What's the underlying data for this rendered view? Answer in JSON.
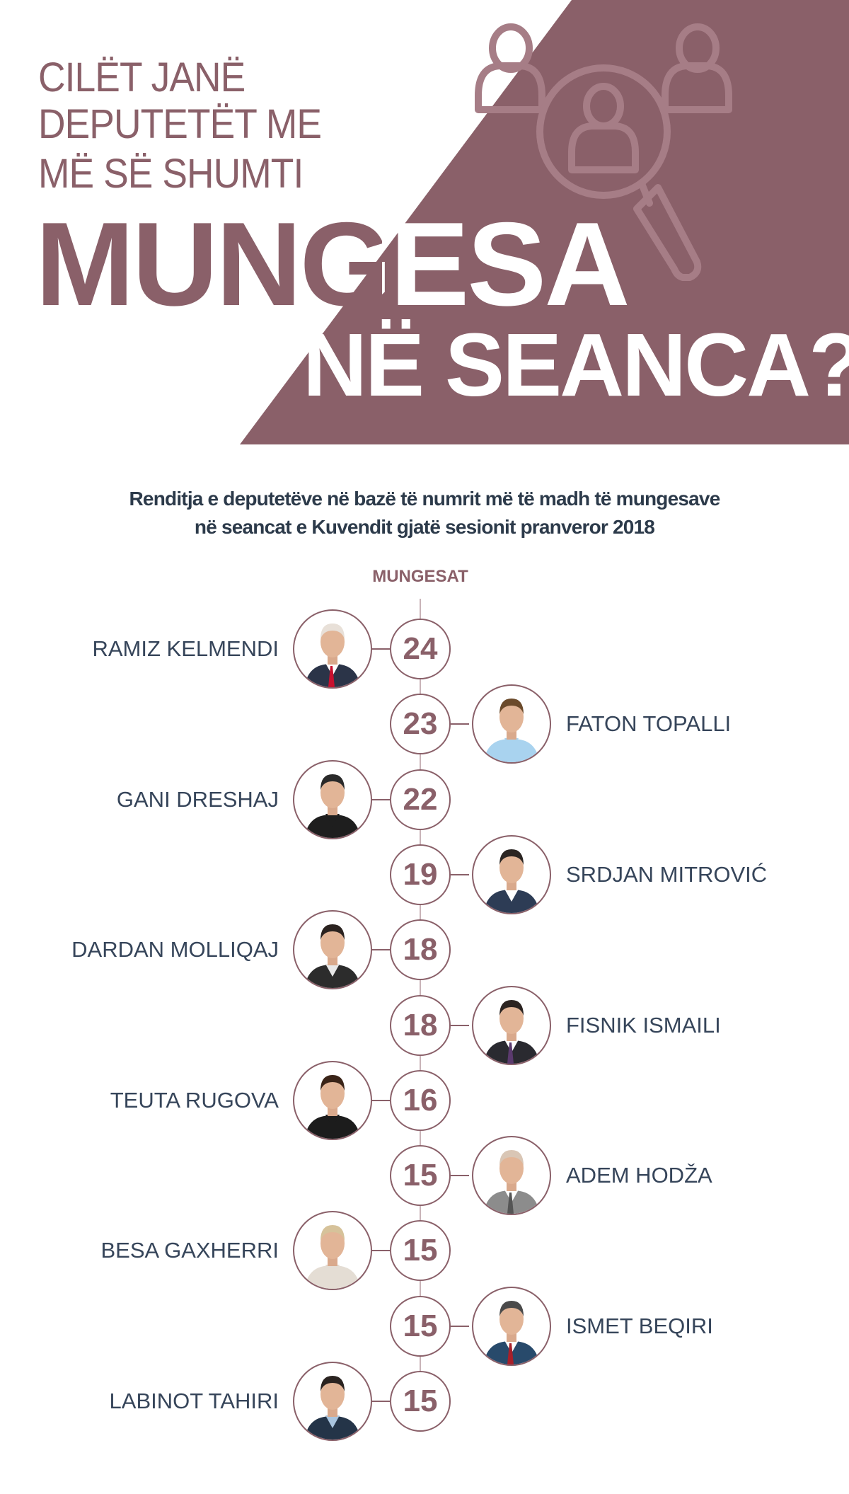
{
  "header": {
    "title_lines": [
      "CILËT JANË",
      "DEPUTETËT ME",
      "MË SË SHUMTI"
    ],
    "headline_1": "MUNGESA",
    "headline_2": "NË SEANCA?",
    "icon": "people-magnifier-icon"
  },
  "subtitle_lines": [
    "Renditja e deputetëve në bazë të numrit më të madh të mungesave",
    "në seancat e Kuvendit gjatë sesionit pranveror 2018"
  ],
  "column_header": "MUNGESAT",
  "colors": {
    "accent": "#8a6069",
    "icon": "#a67d86",
    "text": "#36455a"
  },
  "chart_data": {
    "type": "table",
    "title": "",
    "rows": [
      {
        "name": "RAMIZ KELMENDI",
        "absences": 24,
        "side": "left",
        "tie": "#c8102e",
        "suit": "#2b3448",
        "shirt": "#ffffff",
        "hair": "#e8e0d8"
      },
      {
        "name": "FATON TOPALLI",
        "absences": 23,
        "side": "right",
        "tie": "",
        "suit": "#a9d3ef",
        "shirt": "#a9d3ef",
        "hair": "#6b4a2b"
      },
      {
        "name": "GANI DRESHAJ",
        "absences": 22,
        "side": "left",
        "tie": "",
        "suit": "#1e1e1e",
        "shirt": "#1e1e1e",
        "hair": "#2a2a2a"
      },
      {
        "name": "SRDJAN MITROVIĆ",
        "absences": 19,
        "side": "right",
        "tie": "",
        "suit": "#2d3c55",
        "shirt": "#ffffff",
        "hair": "#2b2522"
      },
      {
        "name": "DARDAN MOLLIQAJ",
        "absences": 18,
        "side": "left",
        "tie": "",
        "suit": "#2c2c2c",
        "shirt": "#e8e8e8",
        "hair": "#2b2320"
      },
      {
        "name": "FISNIK ISMAILI",
        "absences": 18,
        "side": "right",
        "tie": "#5b3a6e",
        "suit": "#2a2a30",
        "shirt": "#ffffff",
        "hair": "#2b2320"
      },
      {
        "name": "TEUTA RUGOVA",
        "absences": 16,
        "side": "left",
        "tie": "",
        "suit": "#1c1c1c",
        "shirt": "#1c1c1c",
        "hair": "#3a2418"
      },
      {
        "name": "ADEM HODŽA",
        "absences": 15,
        "side": "right",
        "tie": "#555",
        "suit": "#8c8c8c",
        "shirt": "#ffffff",
        "hair": "#d9c6b5"
      },
      {
        "name": "BESA GAXHERRI",
        "absences": 15,
        "side": "left",
        "tie": "",
        "suit": "#e4ddd4",
        "shirt": "#e4ddd4",
        "hair": "#d6c29a"
      },
      {
        "name": "ISMET BEQIRI",
        "absences": 15,
        "side": "right",
        "tie": "#a8202a",
        "suit": "#284a6b",
        "shirt": "#ffffff",
        "hair": "#4a4a4a"
      },
      {
        "name": "LABINOT TAHIRI",
        "absences": 15,
        "side": "left",
        "tie": "",
        "suit": "#243448",
        "shirt": "#a9c4de",
        "hair": "#2a2320"
      }
    ]
  }
}
